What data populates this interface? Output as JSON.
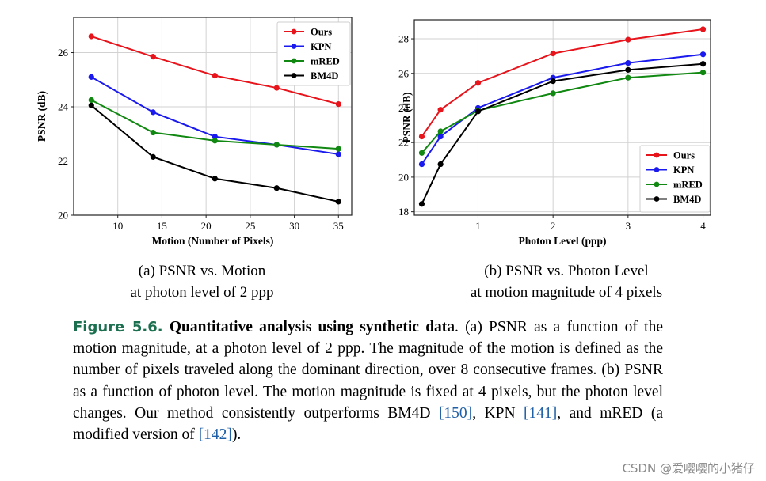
{
  "chart_data": [
    {
      "type": "line",
      "xlabel": "Motion (Number of Pixels)",
      "ylabel": "PSNR (dB)",
      "xlim": [
        5,
        36.5
      ],
      "ylim": [
        20,
        27.3
      ],
      "xticks": [
        10,
        15,
        20,
        25,
        30,
        35
      ],
      "yticks": [
        20,
        22,
        24,
        26
      ],
      "grid": true,
      "legend_position": "top-right",
      "x": [
        7,
        14,
        21,
        28,
        35
      ],
      "series": [
        {
          "name": "Ours",
          "color": "#e8141c",
          "values": [
            26.6,
            25.85,
            25.15,
            24.7,
            24.1
          ]
        },
        {
          "name": "KPN",
          "color": "#1a1aee",
          "values": [
            25.1,
            23.8,
            22.9,
            22.6,
            22.25
          ]
        },
        {
          "name": "mRED",
          "color": "#118811",
          "values": [
            24.25,
            23.05,
            22.75,
            22.6,
            22.45
          ]
        },
        {
          "name": "BM4D",
          "color": "#000000",
          "values": [
            24.05,
            22.15,
            21.35,
            21.0,
            20.5
          ]
        }
      ]
    },
    {
      "type": "line",
      "xlabel": "Photon Level (ppp)",
      "ylabel": "PSNR (dB)",
      "xlim": [
        0.15,
        4.1
      ],
      "ylim": [
        17.8,
        29.1
      ],
      "xticks": [
        1,
        2,
        3,
        4
      ],
      "yticks": [
        18,
        20,
        22,
        24,
        26,
        28
      ],
      "grid": true,
      "legend_position": "bottom-right",
      "x": [
        0.25,
        0.5,
        1,
        2,
        3,
        4
      ],
      "series": [
        {
          "name": "Ours",
          "color": "#e8141c",
          "values": [
            22.35,
            23.9,
            25.45,
            27.15,
            27.95,
            28.55
          ]
        },
        {
          "name": "KPN",
          "color": "#1a1aee",
          "values": [
            20.75,
            22.35,
            24.0,
            25.75,
            26.6,
            27.1
          ]
        },
        {
          "name": "mRED",
          "color": "#118811",
          "values": [
            21.4,
            22.65,
            23.85,
            24.85,
            25.75,
            26.05
          ]
        },
        {
          "name": "BM4D",
          "color": "#000000",
          "values": [
            18.45,
            20.75,
            23.8,
            25.55,
            26.2,
            26.55
          ]
        }
      ]
    }
  ],
  "subcaptions": {
    "a_line1": "(a) PSNR vs. Motion",
    "a_line2": "at photon level of 2 ppp",
    "b_line1": "(b) PSNR vs. Photon Level",
    "b_line2": "at motion magnitude of 4 pixels"
  },
  "caption": {
    "label": "Figure 5.6.",
    "title": "Quantitative analysis using synthetic data",
    "text1": ". (a) PSNR as a function of the motion magnitude, at a photon level of 2 ppp. The magnitude of the motion is defined as the number of pixels traveled along the dominant direction, over 8 consecutive frames. (b) PSNR as a function of photon level. The motion magnitude is fixed at 4 pixels, but the photon level changes. Our method consistently outperforms BM4D ",
    "cite1": "[150]",
    "text2": ", KPN ",
    "cite2": "[141]",
    "text3": ", and mRED (a modified version of ",
    "cite3": "[142]",
    "text4": ")."
  },
  "watermark": "CSDN @爱嘤嘤的小猪仔"
}
